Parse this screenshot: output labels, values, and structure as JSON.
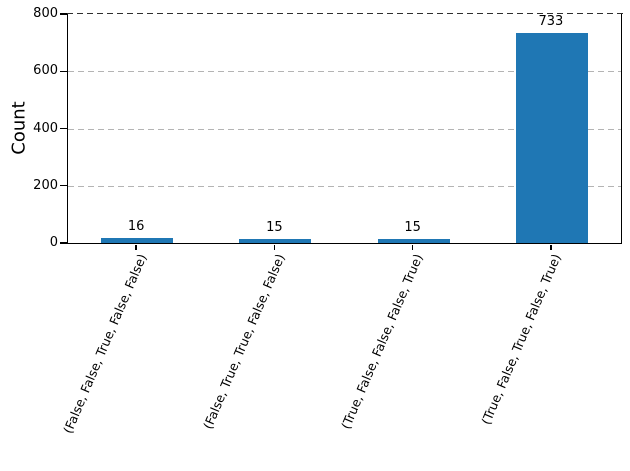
{
  "chart_data": {
    "type": "bar",
    "title": "",
    "xlabel": "",
    "ylabel": "Count",
    "categories": [
      "(False, False, True, False, False)",
      "(False, True, True, False, False)",
      "(True, False, False, False, True)",
      "(True, False, True, False, True)"
    ],
    "values": [
      16,
      15,
      15,
      733
    ],
    "ylim": [
      0,
      800
    ],
    "yticks": [
      0,
      200,
      400,
      600,
      800
    ],
    "legend": "none",
    "grid": {
      "axis": "y",
      "style": "dashed",
      "color": "#b4b4b4"
    },
    "bar_color": "#1f77b4",
    "x_tick_rotation_deg": 67
  }
}
